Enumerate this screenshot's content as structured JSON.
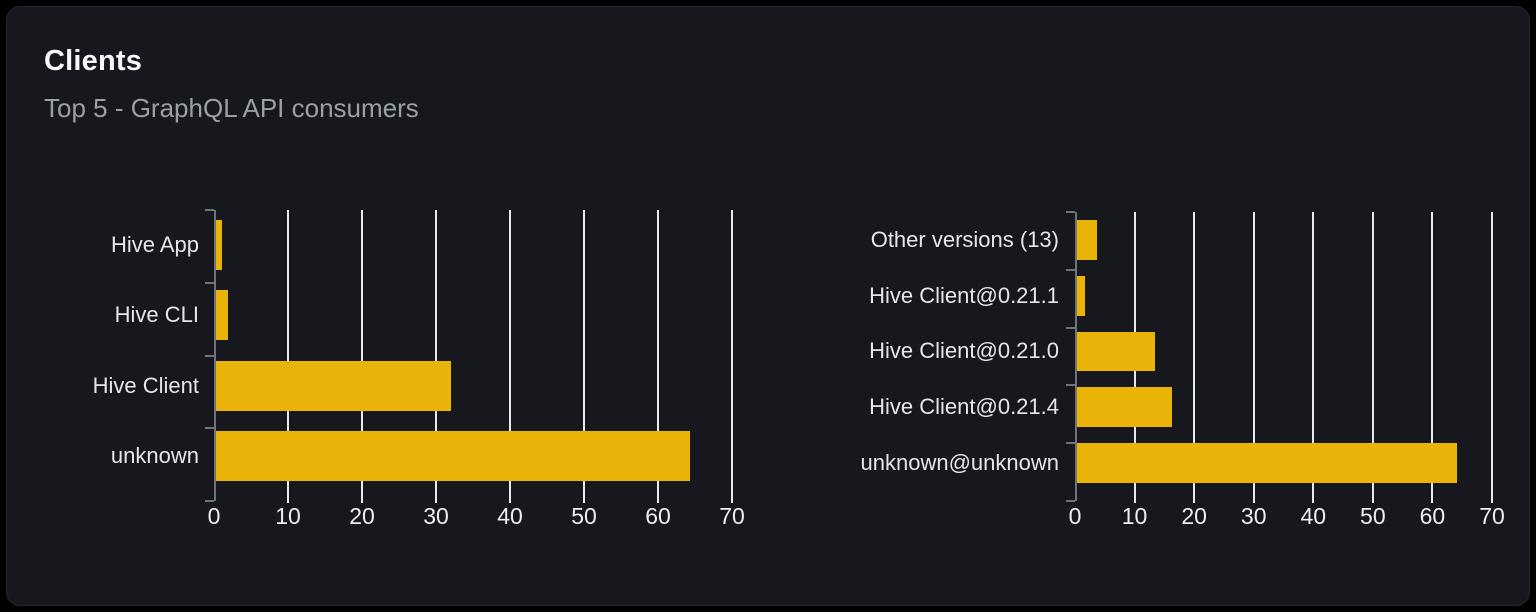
{
  "card": {
    "title": "Clients",
    "subtitle": "Top 5 - GraphQL API consumers"
  },
  "colors": {
    "bar": "#e9b308",
    "card_background": "#16181d",
    "page_background": "#000000",
    "gridline": "#e6e9f0",
    "axis": "#707379",
    "title_text": "#f7f8f8",
    "subtitle_text": "#9aa0a7",
    "label_text": "#e4e6e9"
  },
  "chart_data": [
    {
      "type": "bar",
      "orientation": "horizontal",
      "title": "",
      "categories": [
        "Hive App",
        "Hive CLI",
        "Hive Client",
        "unknown"
      ],
      "values": [
        1.1,
        1.9,
        32,
        64.3
      ],
      "xlim": [
        0,
        70
      ],
      "xticks": [
        0,
        10,
        20,
        30,
        40,
        50,
        60,
        70
      ],
      "grid": true,
      "legend": false,
      "bar_color": "#e9b308"
    },
    {
      "type": "bar",
      "orientation": "horizontal",
      "title": "",
      "categories": [
        "Other versions (13)",
        "Hive Client@0.21.1",
        "Hive Client@0.21.0",
        "Hive Client@0.21.4",
        "unknown@unknown"
      ],
      "values": [
        3.7,
        1.7,
        13.5,
        16.3,
        64.1
      ],
      "xlim": [
        0,
        70
      ],
      "xticks": [
        0,
        10,
        20,
        30,
        40,
        50,
        60,
        70
      ],
      "grid": true,
      "legend": false,
      "bar_color": "#e9b308"
    }
  ]
}
